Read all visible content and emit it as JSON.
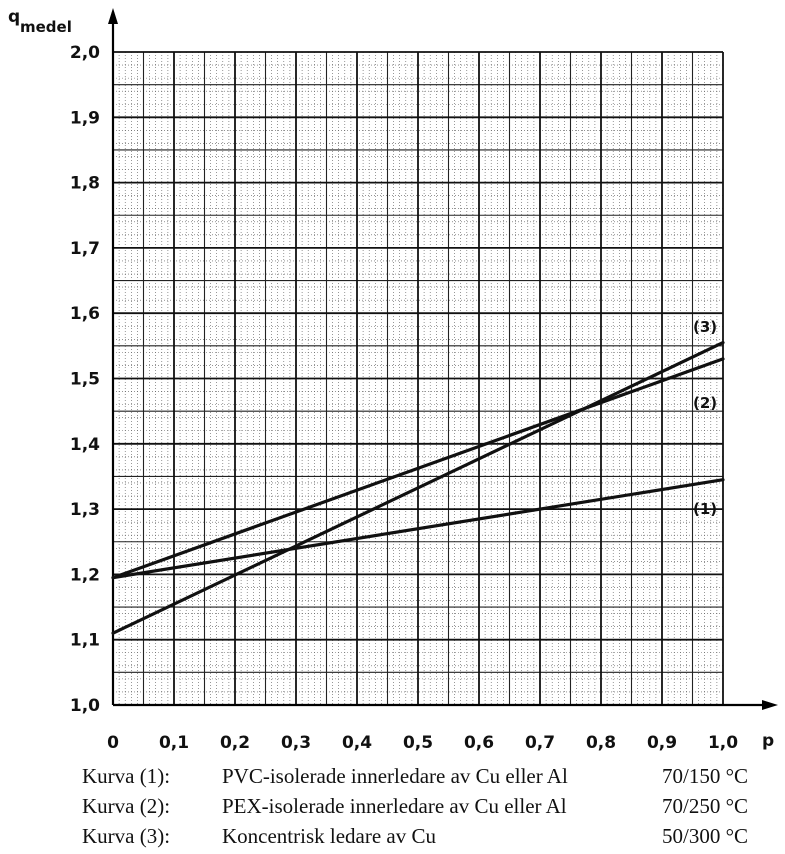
{
  "chart_data": {
    "type": "line",
    "xlabel": "p",
    "ylabel_main": "q",
    "ylabel_sub": "medel",
    "xlim": [
      0,
      1.0
    ],
    "ylim": [
      1.0,
      2.0
    ],
    "xticks": [
      "0",
      "0,1",
      "0,2",
      "0,3",
      "0,4",
      "0,5",
      "0,6",
      "0,7",
      "0,8",
      "0,9",
      "1,0"
    ],
    "yticks": [
      "1,0",
      "1,1",
      "1,2",
      "1,3",
      "1,4",
      "1,5",
      "1,6",
      "1,7",
      "1,8",
      "1,9",
      "2,0"
    ],
    "grid": true,
    "series": [
      {
        "name": "(1)",
        "x": [
          0,
          1.0
        ],
        "y": [
          1.195,
          1.345
        ]
      },
      {
        "name": "(2)",
        "x": [
          0,
          1.0
        ],
        "y": [
          1.195,
          1.53
        ]
      },
      {
        "name": "(3)",
        "x": [
          0,
          1.0
        ],
        "y": [
          1.11,
          1.555
        ]
      }
    ]
  },
  "legend": [
    {
      "curve": "Kurva (1):",
      "description": "PVC-isolerade innerledare av Cu eller Al",
      "temps": "70/150 °C"
    },
    {
      "curve": "Kurva (2):",
      "description": "PEX-isolerade innerledare av Cu eller Al",
      "temps": "70/250 °C"
    },
    {
      "curve": "Kurva (3):",
      "description": "Koncentrisk ledare av Cu",
      "temps": "50/300 °C"
    }
  ]
}
